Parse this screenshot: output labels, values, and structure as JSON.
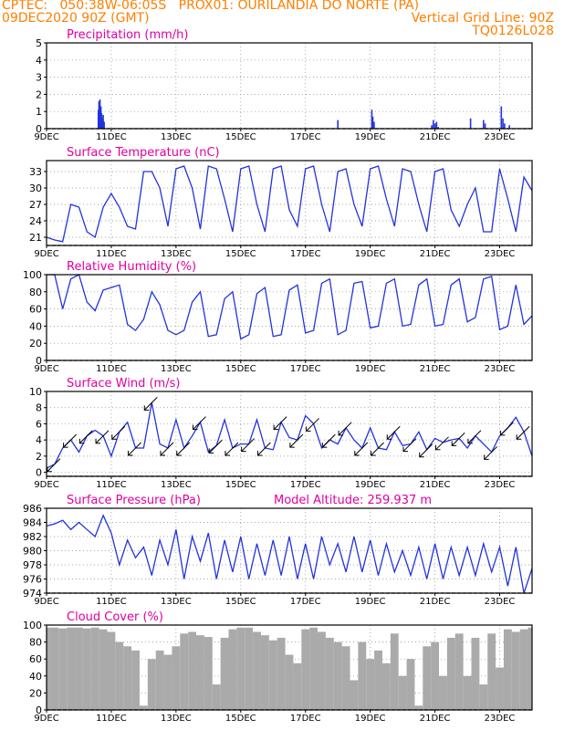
{
  "header": {
    "line1_left": "CPTEC:   050:38W-06:05S   PROX01: OURILANDIA DO NORTE (PA)",
    "line2_left": "09DEC2020 90Z (GMT)",
    "line2_right": "Vertical Grid Line: 90Z",
    "line3_right": "TQ0126L028",
    "model_altitude": "Model Altitude: 259.937 m"
  },
  "colors": {
    "header": "#ff7f00",
    "title": "#e000a0",
    "series": "#2233dd",
    "cloud": "#aaaaaa",
    "grid": "#888888"
  },
  "x_ticks": [
    "9DEC",
    "11DEC",
    "13DEC",
    "15DEC",
    "17DEC",
    "19DEC",
    "21DEC",
    "23DEC"
  ],
  "x_range_days": [
    9,
    24
  ],
  "chart_data": [
    {
      "type": "bar",
      "title": "Precipitation (mm/h)",
      "ylim": [
        0,
        5
      ],
      "yticks": [
        0,
        1,
        2,
        3,
        4,
        5
      ],
      "x_days": [
        10.6,
        10.62,
        10.65,
        10.68,
        10.7,
        10.72,
        10.75,
        10.78,
        18.0,
        19.05,
        19.08,
        19.12,
        20.9,
        20.95,
        21.0,
        21.05,
        21.1,
        22.1,
        22.5,
        22.55,
        23.05,
        23.1,
        23.15,
        23.3
      ],
      "values": [
        1.1,
        1.6,
        1.7,
        1.3,
        0.9,
        0.6,
        0.8,
        0.4,
        0.5,
        1.1,
        0.7,
        0.4,
        0.2,
        0.5,
        0.3,
        0.4,
        0.1,
        0.6,
        0.5,
        0.3,
        1.3,
        0.6,
        0.3,
        0.2
      ]
    },
    {
      "type": "line",
      "title": "Surface Temperature (nC)",
      "ylim": [
        19.5,
        35
      ],
      "yticks": [
        21,
        24,
        27,
        30,
        33
      ],
      "x_days": [
        9.0,
        9.25,
        9.5,
        9.75,
        10.0,
        10.25,
        10.5,
        10.75,
        11.0,
        11.25,
        11.5,
        11.75,
        12.0,
        12.25,
        12.5,
        12.75,
        13.0,
        13.25,
        13.5,
        13.75,
        14.0,
        14.25,
        14.5,
        14.75,
        15.0,
        15.25,
        15.5,
        15.75,
        16.0,
        16.25,
        16.5,
        16.75,
        17.0,
        17.25,
        17.5,
        17.75,
        18.0,
        18.25,
        18.5,
        18.75,
        19.0,
        19.25,
        19.5,
        19.75,
        20.0,
        20.25,
        20.5,
        20.75,
        21.0,
        21.25,
        21.5,
        21.75,
        22.0,
        22.25,
        22.5,
        22.75,
        23.0,
        23.25,
        23.5,
        23.75,
        24.0
      ],
      "values": [
        21,
        20.5,
        20.2,
        27,
        26.5,
        22,
        21,
        26.5,
        29,
        26.5,
        23,
        22.5,
        33,
        33,
        30,
        23,
        33.5,
        34,
        30,
        22.5,
        34,
        33.5,
        28,
        22,
        33.5,
        34,
        27,
        22,
        33.5,
        34,
        26,
        23,
        33.5,
        34,
        27,
        22,
        33,
        33.5,
        27,
        23,
        33.5,
        34,
        28,
        23,
        33.5,
        33,
        27,
        22,
        33,
        33.5,
        26,
        23,
        27,
        30,
        22,
        22,
        33.5,
        28,
        22,
        32,
        29.5
      ]
    },
    {
      "type": "line",
      "title": "Relative Humidity (%)",
      "ylim": [
        0,
        100
      ],
      "yticks": [
        0,
        20,
        40,
        60,
        80,
        100
      ],
      "x_days": [
        9.0,
        9.25,
        9.5,
        9.75,
        10.0,
        10.25,
        10.5,
        10.75,
        11.0,
        11.25,
        11.5,
        11.75,
        12.0,
        12.25,
        12.5,
        12.75,
        13.0,
        13.25,
        13.5,
        13.75,
        14.0,
        14.25,
        14.5,
        14.75,
        15.0,
        15.25,
        15.5,
        15.75,
        16.0,
        16.25,
        16.5,
        16.75,
        17.0,
        17.25,
        17.5,
        17.75,
        18.0,
        18.25,
        18.5,
        18.75,
        19.0,
        19.25,
        19.5,
        19.75,
        20.0,
        20.25,
        20.5,
        20.75,
        21.0,
        21.25,
        21.5,
        21.75,
        22.0,
        22.25,
        22.5,
        22.75,
        23.0,
        23.25,
        23.5,
        23.75,
        24.0
      ],
      "values": [
        100,
        100,
        60,
        95,
        100,
        68,
        58,
        82,
        85,
        88,
        42,
        35,
        48,
        80,
        65,
        35,
        30,
        35,
        68,
        80,
        28,
        30,
        72,
        80,
        25,
        30,
        78,
        85,
        28,
        30,
        82,
        88,
        32,
        35,
        90,
        95,
        30,
        35,
        90,
        92,
        38,
        40,
        90,
        95,
        40,
        42,
        88,
        95,
        40,
        42,
        88,
        95,
        45,
        50,
        95,
        98,
        36,
        40,
        88,
        42,
        52
      ]
    },
    {
      "type": "line",
      "title": "Surface Wind (m/s)",
      "ylim": [
        -0.5,
        10
      ],
      "yticks": [
        0,
        2,
        4,
        6,
        8,
        10
      ],
      "x_days": [
        9.0,
        9.25,
        9.5,
        9.75,
        10.0,
        10.25,
        10.5,
        10.75,
        11.0,
        11.25,
        11.5,
        11.75,
        12.0,
        12.25,
        12.5,
        12.75,
        13.0,
        13.25,
        13.5,
        13.75,
        14.0,
        14.25,
        14.5,
        14.75,
        15.0,
        15.25,
        15.5,
        15.75,
        16.0,
        16.25,
        16.5,
        16.75,
        17.0,
        17.25,
        17.5,
        17.75,
        18.0,
        18.25,
        18.5,
        18.75,
        19.0,
        19.25,
        19.5,
        19.75,
        20.0,
        20.25,
        20.5,
        20.75,
        21.0,
        21.25,
        21.5,
        21.75,
        22.0,
        22.25,
        22.5,
        22.75,
        23.0,
        23.25,
        23.5,
        23.75,
        24.0
      ],
      "values": [
        0.5,
        1,
        3,
        4,
        2.5,
        4.5,
        5.2,
        4.5,
        2,
        5,
        6.2,
        3,
        3,
        8.6,
        3.5,
        3,
        6.5,
        3,
        4.5,
        6.2,
        2.5,
        3.3,
        6.5,
        3,
        3.5,
        3.5,
        6.5,
        3,
        2.8,
        6.2,
        4.3,
        4,
        7,
        6,
        3,
        4,
        3.5,
        5.5,
        4,
        3,
        5.5,
        3,
        2.8,
        5,
        3.3,
        3.5,
        5,
        2.8,
        4.2,
        3.7,
        4,
        4.2,
        3,
        4.5,
        3.5,
        2.5,
        4.5,
        5.5,
        6.8,
        5,
        2
      ]
    },
    {
      "type": "line",
      "title": "Surface Pressure (hPa)",
      "ylim": [
        974,
        986
      ],
      "yticks": [
        974,
        976,
        978,
        980,
        982,
        984,
        986
      ],
      "x_days": [
        9.0,
        9.25,
        9.5,
        9.75,
        10.0,
        10.25,
        10.5,
        10.75,
        11.0,
        11.25,
        11.5,
        11.75,
        12.0,
        12.25,
        12.5,
        12.75,
        13.0,
        13.25,
        13.5,
        13.75,
        14.0,
        14.25,
        14.5,
        14.75,
        15.0,
        15.25,
        15.5,
        15.75,
        16.0,
        16.25,
        16.5,
        16.75,
        17.0,
        17.25,
        17.5,
        17.75,
        18.0,
        18.25,
        18.5,
        18.75,
        19.0,
        19.25,
        19.5,
        19.75,
        20.0,
        20.25,
        20.5,
        20.75,
        21.0,
        21.25,
        21.5,
        21.75,
        22.0,
        22.25,
        22.5,
        22.75,
        23.0,
        23.25,
        23.5,
        23.75,
        24.0
      ],
      "values": [
        983.5,
        983.8,
        984.3,
        983,
        984,
        983,
        982,
        985,
        982.5,
        978,
        981.5,
        979,
        980.5,
        976.5,
        981.5,
        978,
        983,
        976,
        982,
        978.5,
        982.5,
        976,
        981.5,
        977,
        982,
        976,
        981,
        976.5,
        981.5,
        976.5,
        982,
        976,
        981,
        976,
        982,
        978,
        981,
        977,
        982,
        977,
        981.5,
        976.5,
        981,
        977,
        980,
        976.5,
        980.5,
        976,
        981,
        976,
        980.5,
        976.5,
        980.5,
        976.5,
        981,
        977,
        980.5,
        975,
        980.5,
        974,
        977.5
      ]
    },
    {
      "type": "bar",
      "title": "Cloud Cover (%)",
      "ylim": [
        0,
        100
      ],
      "yticks": [
        0,
        20,
        40,
        60,
        80,
        100
      ],
      "x_days": [
        9.0,
        9.25,
        9.5,
        9.75,
        10.0,
        10.25,
        10.5,
        10.75,
        11.0,
        11.25,
        11.5,
        11.75,
        12.0,
        12.25,
        12.5,
        12.75,
        13.0,
        13.25,
        13.5,
        13.75,
        14.0,
        14.25,
        14.5,
        14.75,
        15.0,
        15.25,
        15.5,
        15.75,
        16.0,
        16.25,
        16.5,
        16.75,
        17.0,
        17.25,
        17.5,
        17.75,
        18.0,
        18.25,
        18.5,
        18.75,
        19.0,
        19.25,
        19.5,
        19.75,
        20.0,
        20.25,
        20.5,
        20.75,
        21.0,
        21.25,
        21.5,
        21.75,
        22.0,
        22.25,
        22.5,
        22.75,
        23.0,
        23.25,
        23.5,
        23.75,
        24.0
      ],
      "values": [
        97,
        97,
        96,
        97,
        97,
        96,
        97,
        95,
        92,
        80,
        75,
        70,
        5,
        60,
        70,
        65,
        75,
        90,
        92,
        88,
        86,
        30,
        85,
        95,
        97,
        97,
        92,
        88,
        82,
        85,
        65,
        55,
        95,
        97,
        92,
        85,
        80,
        75,
        35,
        80,
        60,
        70,
        55,
        90,
        40,
        60,
        5,
        75,
        80,
        40,
        85,
        90,
        40,
        85,
        30,
        90,
        50,
        95,
        92,
        95,
        97
      ]
    }
  ]
}
